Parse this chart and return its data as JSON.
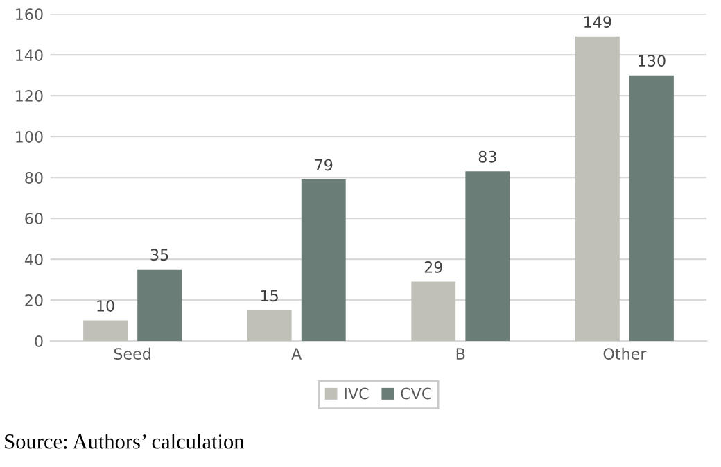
{
  "chart_data": {
    "type": "bar",
    "categories": [
      "Seed",
      "A",
      "B",
      "Other"
    ],
    "series": [
      {
        "name": "IVC",
        "color": "#c0c0b9",
        "values": [
          10,
          15,
          29,
          149
        ]
      },
      {
        "name": "CVC",
        "color": "#6b7d77",
        "values": [
          35,
          79,
          83,
          130
        ]
      }
    ],
    "ylim": [
      0,
      160
    ],
    "yticks": [
      0,
      20,
      40,
      60,
      80,
      100,
      120,
      140,
      160
    ],
    "grid": "y",
    "legend": "bottom",
    "data_labels": true,
    "annotations": [
      "Source: Authors’ calculation"
    ]
  }
}
